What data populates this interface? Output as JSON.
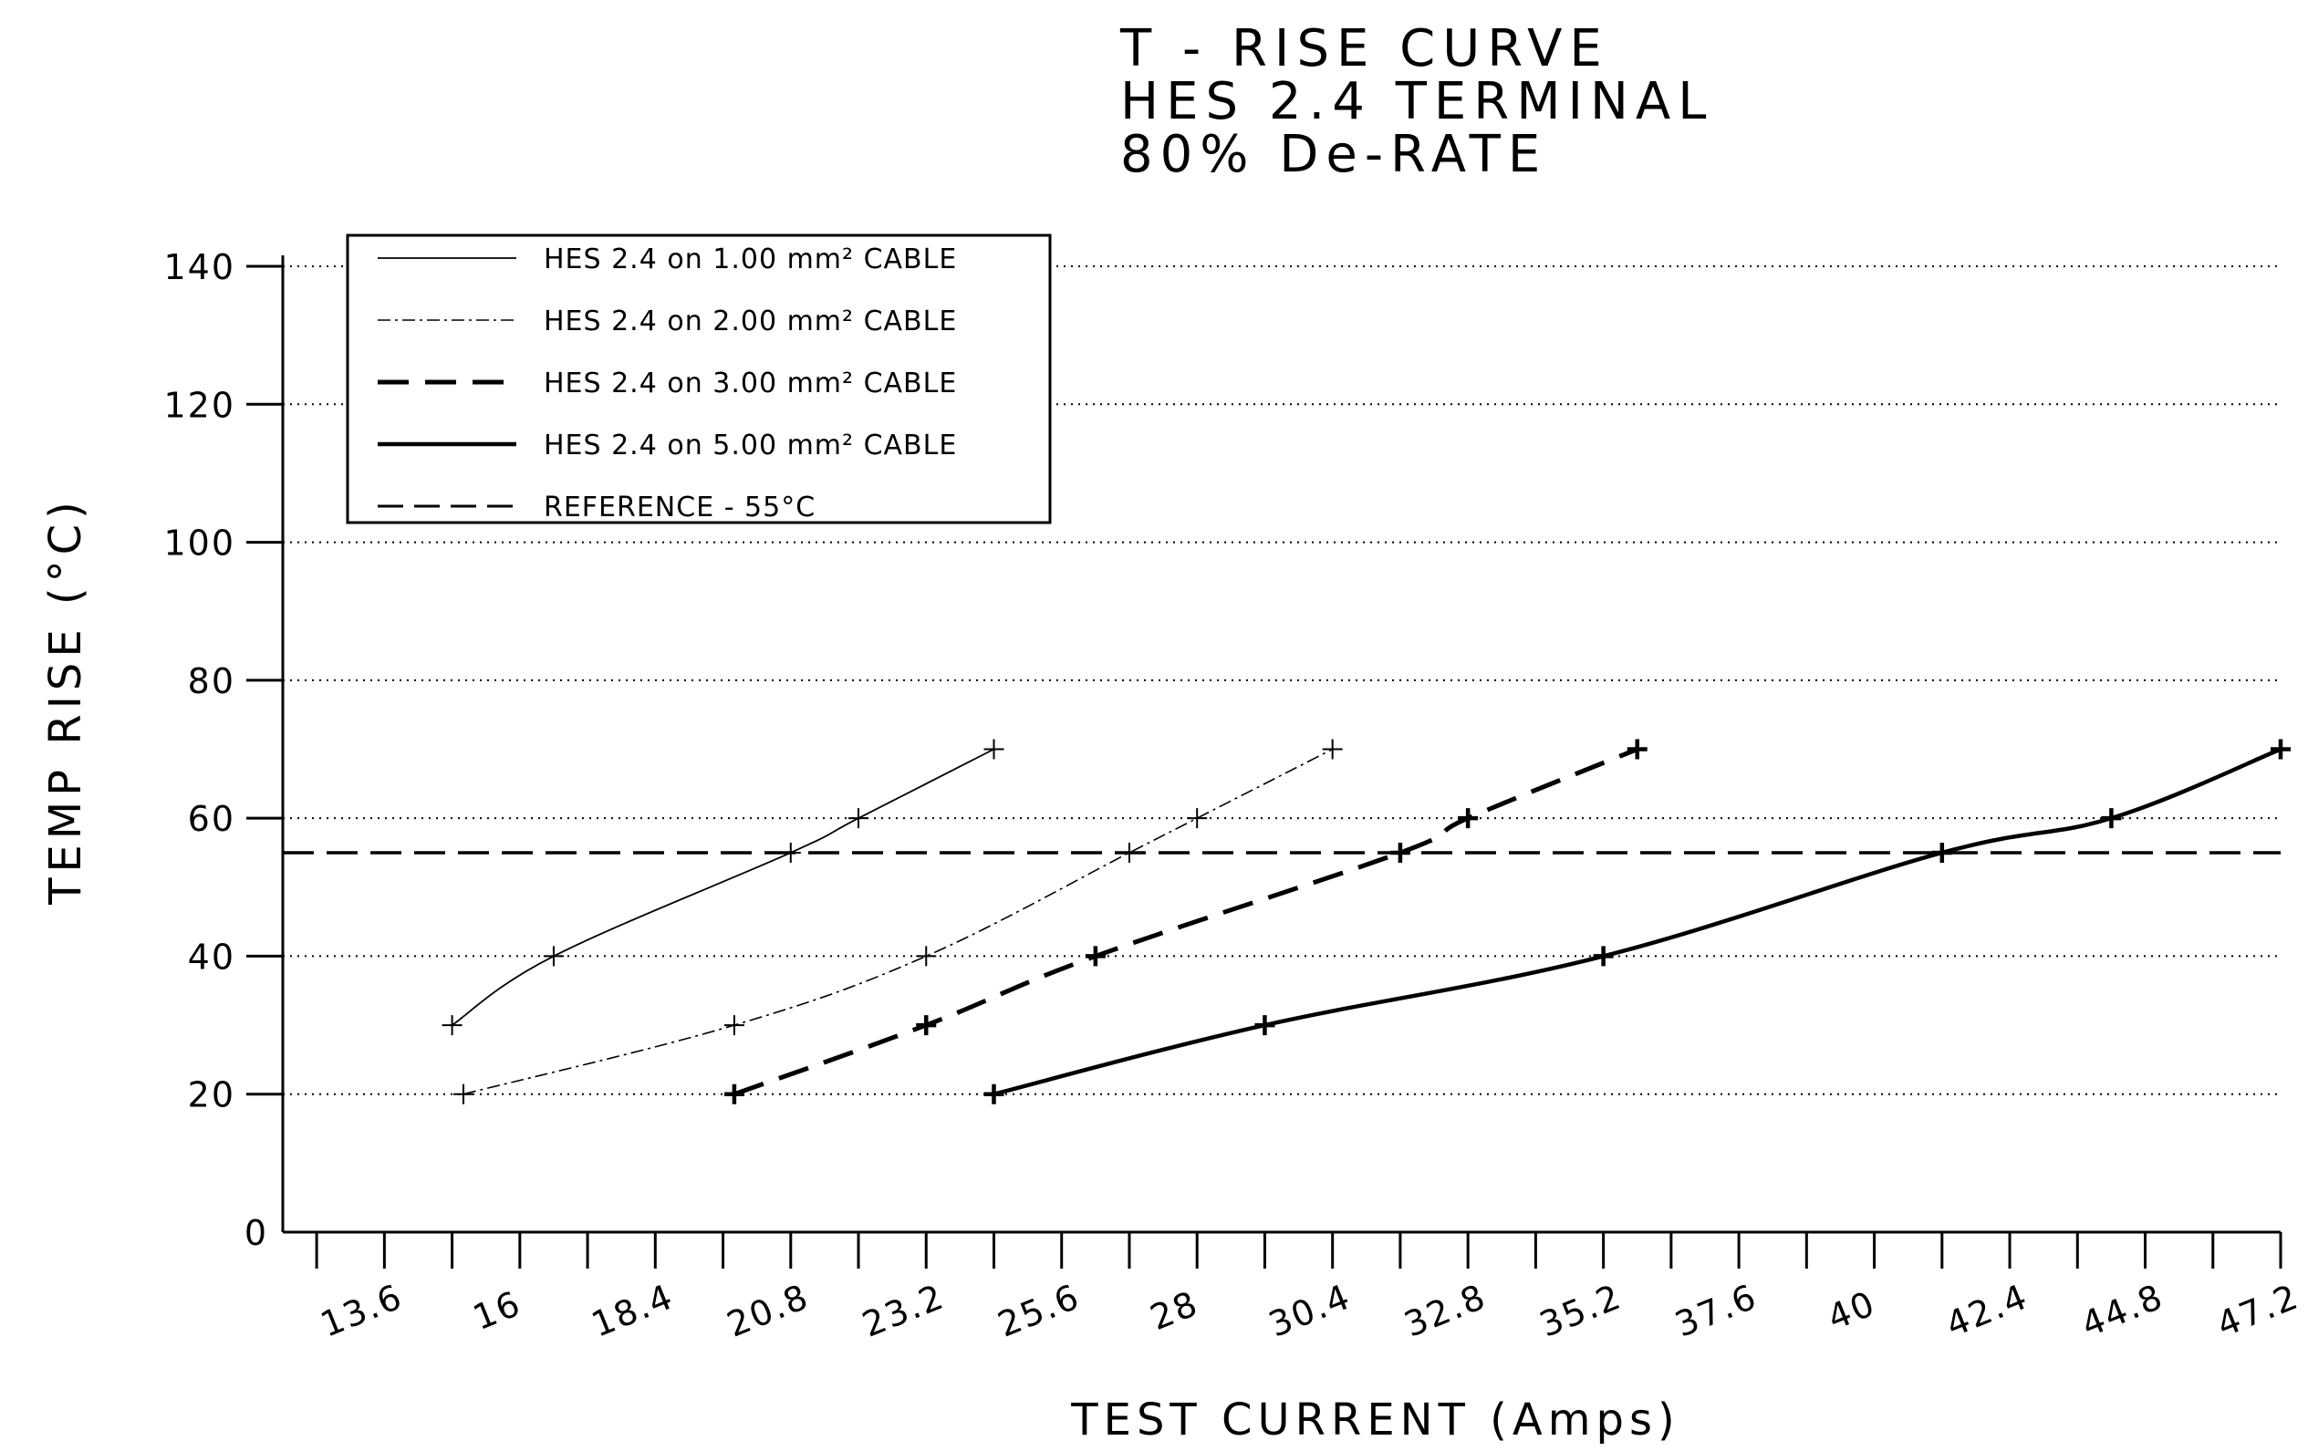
{
  "chart_data": {
    "type": "line",
    "title_lines": [
      "T  -  RISE  CURVE",
      "HES  2.4  TERMINAL",
      "80%  De-RATE"
    ],
    "xlabel": "TEST  CURRENT  (Amps)",
    "ylabel": "TEMP  RISE  (°C)",
    "x_ticks": [
      "13.6",
      "16",
      "18.4",
      "20.8",
      "23.2",
      "25.6",
      "28",
      "30.4",
      "32.8",
      "35.2",
      "37.6",
      "40",
      "42.4",
      "44.8",
      "47.2"
    ],
    "y_ticks": [
      "0",
      "20",
      "40",
      "60",
      "80",
      "100",
      "120",
      "140"
    ],
    "xlim": [
      11.8,
      47.2
    ],
    "ylim": [
      0,
      140
    ],
    "grid": true,
    "legend_position": "top-left",
    "series": [
      {
        "name": "HES 2.4 on 1.00 mm² CABLE",
        "style": "thin-solid",
        "color": "#000000",
        "x": [
          14.8,
          16.6,
          20.8,
          22.0,
          24.4
        ],
        "y": [
          30,
          40,
          55,
          60,
          70
        ]
      },
      {
        "name": "HES 2.4 on 2.00 mm² CABLE",
        "style": "thin-dash-dot",
        "color": "#000000",
        "x": [
          15.0,
          19.8,
          23.2,
          26.8,
          28.0,
          30.4
        ],
        "y": [
          20,
          30,
          40,
          55,
          60,
          70
        ]
      },
      {
        "name": "HES 2.4 on 3.00 mm² CABLE",
        "style": "thick-dash",
        "color": "#000000",
        "x": [
          19.8,
          23.2,
          26.2,
          31.6,
          32.8,
          35.8
        ],
        "y": [
          20,
          30,
          40,
          55,
          60,
          70
        ]
      },
      {
        "name": "HES 2.4 on 5.00 mm² CABLE",
        "style": "thick-solid",
        "color": "#000000",
        "x": [
          24.4,
          29.2,
          35.2,
          41.2,
          44.2,
          47.2
        ],
        "y": [
          20,
          30,
          40,
          55,
          60,
          70
        ]
      }
    ],
    "reference": {
      "name": "REFERENCE  -  55°C",
      "style": "dashed",
      "y": 55
    }
  }
}
